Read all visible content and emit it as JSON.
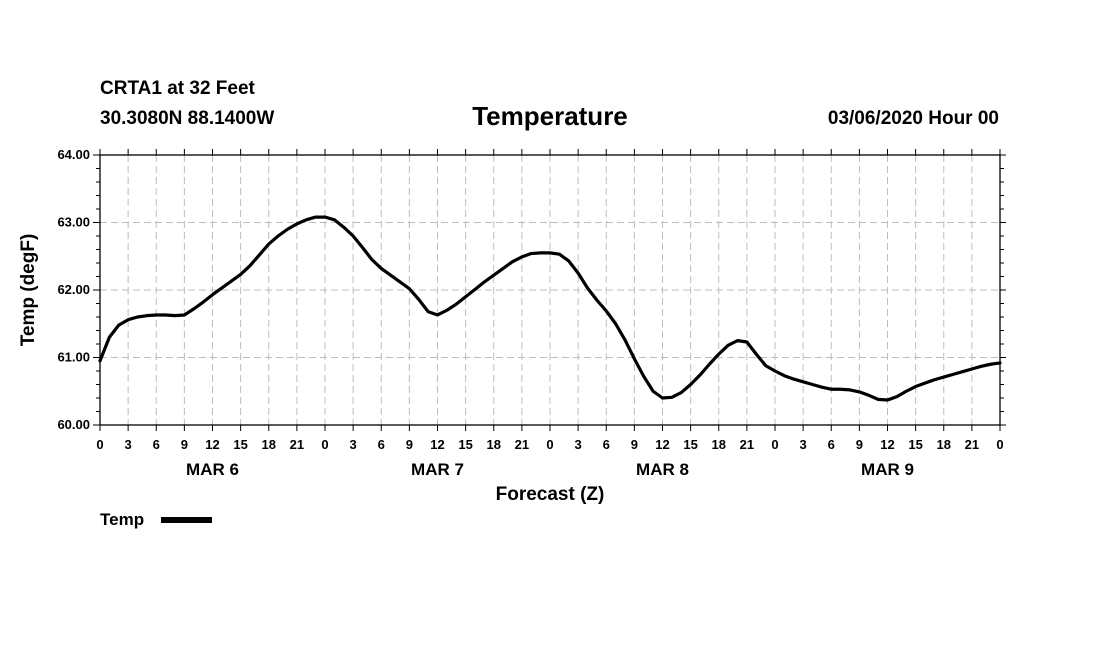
{
  "header": {
    "station": "CRTA1 at 32 Feet",
    "location": "30.3080N 88.1400W",
    "title": "Temperature",
    "datetime": "03/06/2020 Hour 00"
  },
  "chart_data": {
    "type": "line",
    "title": "Temperature",
    "xlabel": "Forecast (Z)",
    "ylabel": "Temp (degF)",
    "ylim": [
      60.0,
      64.0
    ],
    "yticks": [
      "60.00",
      "61.00",
      "62.00",
      "63.00",
      "64.00"
    ],
    "xlim": [
      0,
      96
    ],
    "x_tick_hours": [
      0,
      3,
      6,
      9,
      12,
      15,
      18,
      21,
      24,
      27,
      30,
      33,
      36,
      39,
      42,
      45,
      48,
      51,
      54,
      57,
      60,
      63,
      66,
      69,
      72,
      75,
      78,
      81,
      84,
      87,
      90,
      93,
      96
    ],
    "x_tick_labels": [
      "0",
      "3",
      "6",
      "9",
      "12",
      "15",
      "18",
      "21",
      "0",
      "3",
      "6",
      "9",
      "12",
      "15",
      "18",
      "21",
      "0",
      "3",
      "6",
      "9",
      "12",
      "15",
      "18",
      "21",
      "0",
      "3",
      "6",
      "9",
      "12",
      "15",
      "18",
      "21",
      "0"
    ],
    "date_labels": [
      {
        "label": "MAR 6",
        "hour": 12
      },
      {
        "label": "MAR 7",
        "hour": 36
      },
      {
        "label": "MAR 8",
        "hour": 60
      },
      {
        "label": "MAR 9",
        "hour": 84
      }
    ],
    "grid": true,
    "series": [
      {
        "name": "Temp",
        "x": [
          0,
          1,
          2,
          3,
          4,
          5,
          6,
          7,
          8,
          9,
          10,
          11,
          12,
          13,
          14,
          15,
          16,
          17,
          18,
          19,
          20,
          21,
          22,
          23,
          24,
          25,
          26,
          27,
          28,
          29,
          30,
          31,
          32,
          33,
          34,
          35,
          36,
          37,
          38,
          39,
          40,
          41,
          42,
          43,
          44,
          45,
          46,
          47,
          48,
          49,
          50,
          51,
          52,
          53,
          54,
          55,
          56,
          57,
          58,
          59,
          60,
          61,
          62,
          63,
          64,
          65,
          66,
          67,
          68,
          69,
          70,
          71,
          72,
          73,
          74,
          75,
          76,
          77,
          78,
          79,
          80,
          81,
          82,
          83,
          84,
          85,
          86,
          87,
          88,
          89,
          90,
          91,
          92,
          93,
          94,
          95,
          96
        ],
        "values": [
          60.95,
          61.3,
          61.48,
          61.56,
          61.6,
          61.62,
          61.63,
          61.63,
          61.62,
          61.63,
          61.72,
          61.82,
          61.93,
          62.03,
          62.13,
          62.23,
          62.36,
          62.52,
          62.68,
          62.8,
          62.9,
          62.98,
          63.04,
          63.08,
          63.08,
          63.04,
          62.93,
          62.8,
          62.63,
          62.45,
          62.32,
          62.22,
          62.12,
          62.02,
          61.86,
          61.68,
          61.63,
          61.7,
          61.79,
          61.9,
          62.01,
          62.12,
          62.22,
          62.32,
          62.42,
          62.49,
          62.54,
          62.55,
          62.55,
          62.53,
          62.43,
          62.25,
          62.03,
          61.85,
          61.69,
          61.5,
          61.26,
          60.98,
          60.72,
          60.5,
          60.4,
          60.41,
          60.48,
          60.6,
          60.74,
          60.9,
          61.05,
          61.18,
          61.25,
          61.23,
          61.05,
          60.88,
          60.8,
          60.73,
          60.68,
          60.64,
          60.6,
          60.56,
          60.53,
          60.53,
          60.52,
          60.49,
          60.44,
          60.38,
          60.37,
          60.42,
          60.5,
          60.57,
          60.62,
          60.67,
          60.71,
          60.75,
          60.79,
          60.83,
          60.87,
          60.9,
          60.92
        ]
      }
    ],
    "legend": {
      "label": "Temp",
      "position": "bottom-left"
    }
  }
}
